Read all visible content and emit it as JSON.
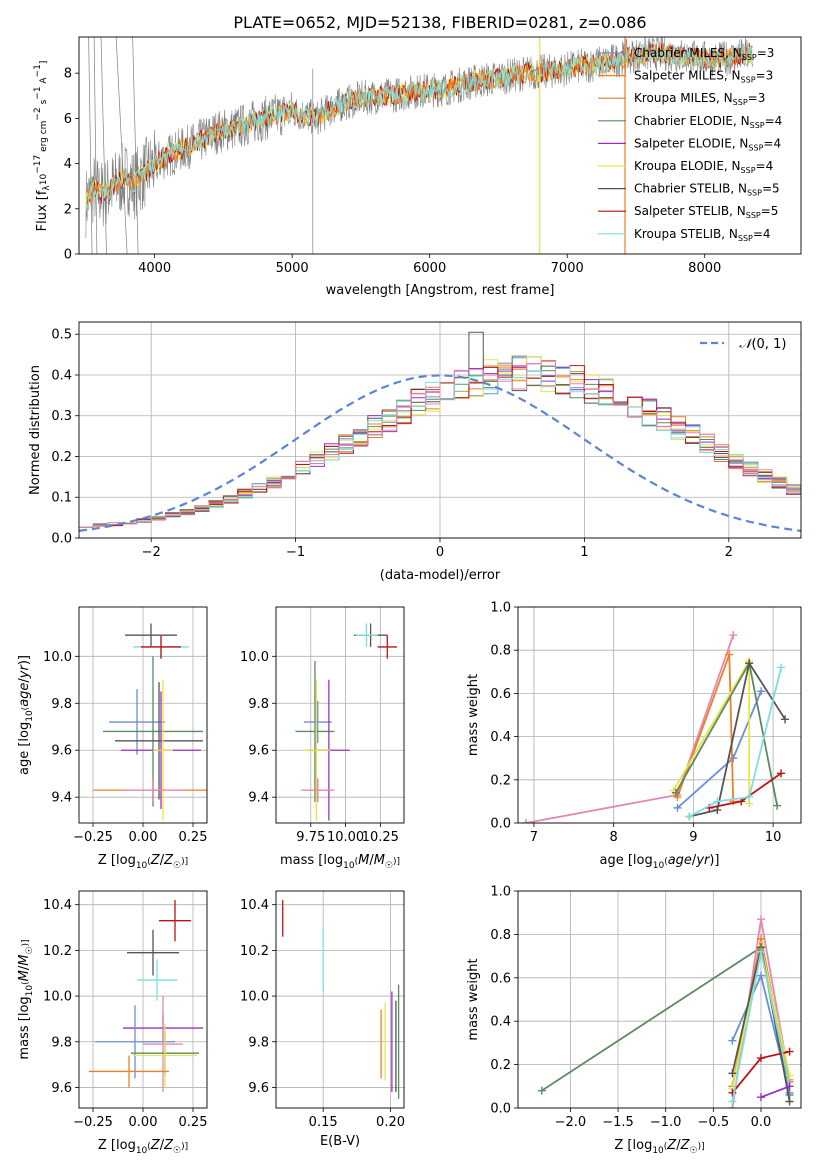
{
  "title": "PLATE=0652, MJD=52138, FIBERID=0281, z=0.086",
  "colors": {
    "chabrier_miles": "#6b8fd6",
    "salpeter_miles": "#f07f22",
    "kroupa_miles": "#d2882b",
    "chabrier_elodie": "#5c8a61",
    "salpeter_elodie": "#9b30c0",
    "kroupa_elodie": "#e6e54a",
    "chabrier_stelib": "#555555",
    "salpeter_stelib": "#b81414",
    "kroupa_stelib": "#7fdede",
    "pink": "#e487b7",
    "gray_spec": "#808080"
  },
  "legend": [
    {
      "text": "Chabrier MILES, N",
      "sub": "SSP",
      "tail": "=3",
      "color": "#6b8fd6"
    },
    {
      "text": "Salpeter MILES, N",
      "sub": "SSP",
      "tail": "=3",
      "color": "#f07f22"
    },
    {
      "text": "Kroupa MILES, N",
      "sub": "SSP",
      "tail": "=3",
      "color": "#d2882b"
    },
    {
      "text": "Chabrier ELODIE, N",
      "sub": "SSP",
      "tail": "=4",
      "color": "#5c8a61"
    },
    {
      "text": "Salpeter ELODIE, N",
      "sub": "SSP",
      "tail": "=4",
      "color": "#9b30c0"
    },
    {
      "text": "Kroupa ELODIE, N",
      "sub": "SSP",
      "tail": "=4",
      "color": "#e6e54a"
    },
    {
      "text": "Chabrier STELIB, N",
      "sub": "SSP",
      "tail": "=5",
      "color": "#555555"
    },
    {
      "text": "Salpeter STELIB, N",
      "sub": "SSP",
      "tail": "=5",
      "color": "#b81414"
    },
    {
      "text": "Kroupa STELIB, N",
      "sub": "SSP",
      "tail": "=4",
      "color": "#7fdede"
    }
  ],
  "chart_data": [
    {
      "type": "line",
      "id": "spectrum",
      "xlabel": "wavelength [Angstrom, rest frame]",
      "ylabel": "Flux [f_λ 10^-17 erg cm^-2 s^-1 A^-1]",
      "xlim": [
        3450,
        8700
      ],
      "ylim": [
        0,
        9.6
      ],
      "xticks": [
        4000,
        5000,
        6000,
        7000,
        8000
      ],
      "yticks": [
        0,
        2,
        4,
        6,
        8
      ],
      "anchors_x": [
        3500,
        3560,
        3620,
        3700,
        3780,
        3850,
        3950,
        4050,
        4150,
        4300,
        4450,
        4600,
        4750,
        4860,
        5000,
        5180,
        5300,
        5500,
        5700,
        5900,
        6100,
        6300,
        6500,
        6700,
        6900,
        7100,
        7300,
        7500,
        7700,
        7900,
        8100,
        8300
      ],
      "anchors_y": [
        2.3,
        2.9,
        2.6,
        3.0,
        3.4,
        3.1,
        3.7,
        4.2,
        4.5,
        4.9,
        5.4,
        5.6,
        5.9,
        6.1,
        6.3,
        6.0,
        6.5,
        6.9,
        7.0,
        7.2,
        7.3,
        7.6,
        7.8,
        8.0,
        8.1,
        8.3,
        8.5,
        8.8,
        8.9,
        8.7,
        8.6,
        8.8
      ],
      "spikes": [
        {
          "x": 3520,
          "y": 9.6
        },
        {
          "x": 3545,
          "y": 0
        },
        {
          "x": 3560,
          "y": 9.6
        },
        {
          "x": 3580,
          "y": 0
        },
        {
          "x": 3610,
          "y": 9.6
        },
        {
          "x": 3650,
          "y": 0
        },
        {
          "x": 3720,
          "y": 9.6
        },
        {
          "x": 3800,
          "y": 0
        },
        {
          "x": 3840,
          "y": 9.6
        },
        {
          "x": 3880,
          "y": 0
        },
        {
          "x": 5150,
          "y": 0
        },
        {
          "x": 5150,
          "y": 8.2
        }
      ],
      "vlines": [
        {
          "x": 6800,
          "color": "#e6e54a"
        },
        {
          "x": 7420,
          "color": "#f07f22"
        }
      ]
    },
    {
      "type": "histogram",
      "id": "residuals",
      "xlabel": "(data-model)/error",
      "ylabel": "Normed distribution",
      "xlim": [
        -2.5,
        2.5
      ],
      "ylim": [
        0,
        0.53
      ],
      "xticks": [
        -2,
        -1,
        0,
        1,
        2
      ],
      "yticks": [
        0.0,
        0.1,
        0.2,
        0.3,
        0.4,
        0.5
      ],
      "bin_width": 0.1,
      "gaussian_label": "N(0,1)",
      "base_values": [
        0.03,
        0.032,
        0.034,
        0.038,
        0.043,
        0.049,
        0.056,
        0.064,
        0.073,
        0.083,
        0.095,
        0.108,
        0.122,
        0.138,
        0.155,
        0.173,
        0.192,
        0.212,
        0.232,
        0.252,
        0.273,
        0.293,
        0.313,
        0.331,
        0.349,
        0.364,
        0.377,
        0.388,
        0.396,
        0.401,
        0.403,
        0.402,
        0.398,
        0.391,
        0.382,
        0.37,
        0.357,
        0.342,
        0.326,
        0.309,
        0.291,
        0.271,
        0.251,
        0.231,
        0.21,
        0.19,
        0.171,
        0.152,
        0.135,
        0.118,
        0.103,
        0.09,
        0.078,
        0.067,
        0.058,
        0.05,
        0.043,
        0.038,
        0.034,
        0.031
      ],
      "peak_bin_value": 0.505
    },
    {
      "type": "errorbar",
      "id": "age_vs_Z",
      "xlabel": "Z [log10(Z/Z☉)]",
      "ylabel": "age [log10(age/yr)]",
      "xlim": [
        -0.32,
        0.32
      ],
      "ylim": [
        9.29,
        10.21
      ],
      "xticks": [
        -0.25,
        0.0,
        0.25
      ],
      "yticks": [
        9.4,
        9.6,
        9.8,
        10.0
      ],
      "points": [
        {
          "x": 0.04,
          "y": 10.09,
          "xerr": 0.13,
          "yerr": 0.05,
          "color": "#555555"
        },
        {
          "x": 0.09,
          "y": 10.04,
          "xerr": 0.14,
          "yerr": 0.05,
          "color": "#7fdede"
        },
        {
          "x": 0.09,
          "y": 10.04,
          "xerr": 0.1,
          "yerr": 0.05,
          "color": "#b81414"
        },
        {
          "x": -0.03,
          "y": 9.72,
          "xerr": 0.14,
          "yerr": 0.14,
          "color": "#6b8fd6"
        },
        {
          "x": 0.05,
          "y": 9.68,
          "xerr": 0.25,
          "yerr": 0.32,
          "color": "#5c8a61"
        },
        {
          "x": 0.08,
          "y": 9.64,
          "xerr": 0.22,
          "yerr": 0.25,
          "color": "#555555"
        },
        {
          "x": 0.09,
          "y": 9.6,
          "xerr": 0.2,
          "yerr": 0.25,
          "color": "#9b30c0"
        },
        {
          "x": 0.1,
          "y": 9.6,
          "xerr": 0.05,
          "yerr": 0.3,
          "color": "#e6e54a"
        },
        {
          "x": 0.05,
          "y": 9.43,
          "xerr": 0.3,
          "yerr": 0.05,
          "color": "#f07f22"
        },
        {
          "x": 0.05,
          "y": 9.43,
          "xerr": 0.15,
          "yerr": 0.05,
          "color": "#e487b7"
        }
      ]
    },
    {
      "type": "errorbar",
      "id": "age_vs_mass",
      "xlabel": "mass [log10(M/M☉)]",
      "ylabel": "",
      "xlim": [
        9.5,
        10.42
      ],
      "ylim": [
        9.29,
        10.21
      ],
      "xticks": [
        9.75,
        10.0,
        10.25
      ],
      "xtick_labels": [
        "9.75",
        "10.00",
        "10.25"
      ],
      "yticks": [
        9.4,
        9.6,
        9.8,
        10.0
      ],
      "points": [
        {
          "x": 10.18,
          "y": 10.09,
          "xerr": 0.12,
          "yerr": 0.05,
          "color": "#555555"
        },
        {
          "x": 10.15,
          "y": 10.09,
          "xerr": 0.08,
          "yerr": 0.05,
          "color": "#7fdede"
        },
        {
          "x": 10.3,
          "y": 10.04,
          "xerr": 0.07,
          "yerr": 0.05,
          "color": "#b81414"
        },
        {
          "x": 9.8,
          "y": 9.72,
          "xerr": 0.1,
          "yerr": 0.09,
          "color": "#6b8fd6"
        },
        {
          "x": 9.78,
          "y": 9.68,
          "xerr": 0.14,
          "yerr": 0.3,
          "color": "#5c8a61"
        },
        {
          "x": 9.88,
          "y": 9.6,
          "xerr": 0.15,
          "yerr": 0.3,
          "color": "#9b30c0"
        },
        {
          "x": 9.79,
          "y": 9.6,
          "xerr": 0.1,
          "yerr": 0.3,
          "color": "#e6e54a"
        },
        {
          "x": 9.8,
          "y": 9.43,
          "xerr": 0.1,
          "yerr": 0.05,
          "color": "#f07f22"
        },
        {
          "x": 9.8,
          "y": 9.43,
          "xerr": 0.12,
          "yerr": 0.05,
          "color": "#e487b7"
        }
      ]
    },
    {
      "type": "line",
      "id": "weight_vs_age",
      "xlabel": "age [log10(age/yr)]",
      "ylabel": "mass weight",
      "xlim": [
        6.8,
        10.35
      ],
      "ylim": [
        0,
        1
      ],
      "xticks": [
        7,
        8,
        9,
        10
      ],
      "yticks": [
        0.0,
        0.2,
        0.4,
        0.6,
        0.8,
        1.0
      ],
      "series": [
        {
          "color": "#e487b7",
          "x": [
            6.9,
            8.8,
            9.5
          ],
          "y": [
            0.0,
            0.13,
            0.87
          ]
        },
        {
          "color": "#6b8fd6",
          "x": [
            8.8,
            9.5,
            9.85
          ],
          "y": [
            0.07,
            0.3,
            0.61
          ]
        },
        {
          "color": "#f07f22",
          "x": [
            8.8,
            9.45,
            9.5
          ],
          "y": [
            0.12,
            0.78,
            0.1
          ]
        },
        {
          "color": "#e6e54a",
          "x": [
            8.75,
            9.7,
            9.7
          ],
          "y": [
            0.15,
            0.75,
            0.09
          ]
        },
        {
          "color": "#5c8a61",
          "x": [
            8.78,
            9.7,
            10.05
          ],
          "y": [
            0.14,
            0.74,
            0.08
          ]
        },
        {
          "color": "#555555",
          "x": [
            8.95,
            9.3,
            9.7,
            10.15
          ],
          "y": [
            0.03,
            0.06,
            0.74,
            0.48
          ]
        },
        {
          "color": "#b81414",
          "x": [
            9.2,
            9.6,
            10.1
          ],
          "y": [
            0.07,
            0.1,
            0.23
          ]
        },
        {
          "color": "#7fdede",
          "x": [
            8.95,
            9.3,
            9.7,
            10.1
          ],
          "y": [
            0.03,
            0.1,
            0.12,
            0.72
          ]
        }
      ]
    },
    {
      "type": "errorbar",
      "id": "mass_vs_Z",
      "xlabel": "Z [log10(Z/Z☉)]",
      "ylabel": "mass [log10(M/M☉)]",
      "xlim": [
        -0.32,
        0.32
      ],
      "ylim": [
        9.51,
        10.46
      ],
      "xticks": [
        -0.25,
        0.0,
        0.25
      ],
      "yticks": [
        9.6,
        9.8,
        10.0,
        10.2,
        10.4
      ],
      "points": [
        {
          "x": 0.16,
          "y": 10.33,
          "xerr": 0.08,
          "yerr": 0.09,
          "color": "#b81414"
        },
        {
          "x": 0.05,
          "y": 10.19,
          "xerr": 0.13,
          "yerr": 0.1,
          "color": "#555555"
        },
        {
          "x": 0.07,
          "y": 10.07,
          "xerr": 0.1,
          "yerr": 0.09,
          "color": "#7fdede"
        },
        {
          "x": 0.1,
          "y": 9.86,
          "xerr": 0.2,
          "yerr": 0.06,
          "color": "#9b30c0"
        },
        {
          "x": -0.04,
          "y": 9.8,
          "xerr": 0.2,
          "yerr": 0.16,
          "color": "#6b8fd6"
        },
        {
          "x": 0.1,
          "y": 9.79,
          "xerr": 0.1,
          "yerr": 0.21,
          "color": "#e487b7"
        },
        {
          "x": 0.11,
          "y": 9.75,
          "xerr": 0.17,
          "yerr": 0.1,
          "color": "#5c8a61"
        },
        {
          "x": 0.11,
          "y": 9.74,
          "xerr": 0.16,
          "yerr": 0.14,
          "color": "#e6e54a"
        },
        {
          "x": -0.07,
          "y": 9.67,
          "xerr": 0.2,
          "yerr": 0.07,
          "color": "#f07f22"
        }
      ]
    },
    {
      "type": "errorbar",
      "id": "mass_vs_ebv",
      "xlabel": "E(B-V)",
      "ylabel": "",
      "xlim": [
        0.115,
        0.21
      ],
      "ylim": [
        9.51,
        10.46
      ],
      "xticks": [
        0.15,
        0.2
      ],
      "xtick_labels": [
        "0.15",
        "0.20"
      ],
      "yticks": [
        9.6,
        9.8,
        10.0,
        10.2,
        10.4
      ],
      "points": [
        {
          "x": 0.12,
          "y": 10.34,
          "yerr": 0.08,
          "color": "#b81414"
        },
        {
          "x": 0.15,
          "y": 10.16,
          "yerr": 0.14,
          "color": "#7fdede"
        },
        {
          "x": 0.193,
          "y": 9.79,
          "yerr": 0.15,
          "color": "#f07f22"
        },
        {
          "x": 0.196,
          "y": 9.8,
          "yerr": 0.17,
          "color": "#e6e54a"
        },
        {
          "x": 0.201,
          "y": 9.8,
          "yerr": 0.22,
          "color": "#9b30c0"
        },
        {
          "x": 0.204,
          "y": 9.78,
          "yerr": 0.2,
          "color": "#555555"
        },
        {
          "x": 0.206,
          "y": 9.8,
          "yerr": 0.25,
          "color": "#5c8a61"
        }
      ]
    },
    {
      "type": "line",
      "id": "weight_vs_Z",
      "xlabel": "Z [log10(Z/Z☉)]",
      "ylabel": "mass weight",
      "xlim": [
        -2.55,
        0.42
      ],
      "ylim": [
        0,
        1
      ],
      "xticks": [
        -2.0,
        -1.5,
        -1.0,
        -0.5,
        0.0
      ],
      "xtick_labels": [
        "−2.0",
        "−1.5",
        "−1.0",
        "−0.5",
        "0.0"
      ],
      "yticks": [
        0.0,
        0.2,
        0.4,
        0.6,
        0.8,
        1.0
      ],
      "series": [
        {
          "color": "#5c8a61",
          "x": [
            -2.3,
            0.0,
            0.3
          ],
          "y": [
            0.08,
            0.74,
            0.06
          ]
        },
        {
          "color": "#6b8fd6",
          "x": [
            -0.3,
            0.0,
            0.3
          ],
          "y": [
            0.31,
            0.61,
            0.07
          ]
        },
        {
          "color": "#e487b7",
          "x": [
            -0.3,
            0.0,
            0.3
          ],
          "y": [
            0.0,
            0.87,
            0.13
          ]
        },
        {
          "color": "#f07f22",
          "x": [
            -0.3,
            0.0,
            0.3
          ],
          "y": [
            0.1,
            0.78,
            0.12
          ]
        },
        {
          "color": "#e6e54a",
          "x": [
            -0.3,
            0.0,
            0.3
          ],
          "y": [
            0.09,
            0.75,
            0.15
          ]
        },
        {
          "color": "#555555",
          "x": [
            -0.3,
            0.0,
            0.3
          ],
          "y": [
            0.16,
            0.74,
            0.03
          ]
        },
        {
          "color": "#b81414",
          "x": [
            -0.3,
            0.0,
            0.3
          ],
          "y": [
            0.07,
            0.23,
            0.26
          ]
        },
        {
          "color": "#7fdede",
          "x": [
            -0.3,
            0.0,
            0.3
          ],
          "y": [
            0.03,
            0.72,
            0.1
          ]
        },
        {
          "color": "#9b30c0",
          "x": [
            0.0,
            0.3
          ],
          "y": [
            0.05,
            0.1
          ]
        }
      ]
    }
  ]
}
